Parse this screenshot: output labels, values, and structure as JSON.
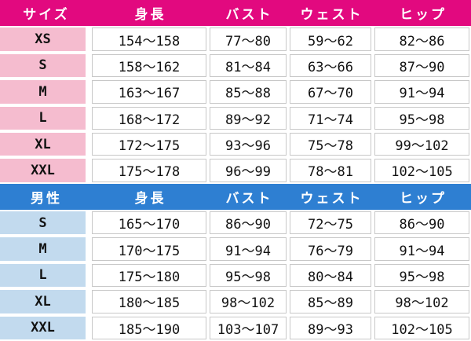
{
  "chart_data": [
    {
      "type": "table",
      "name": "women",
      "title": "サイズ",
      "column_keys": [
        "size",
        "height",
        "bust",
        "waist",
        "hip"
      ],
      "headers": [
        "サイズ",
        "身長",
        "バスト",
        "ウェスト",
        "ヒップ"
      ],
      "rows": [
        [
          "XS",
          "154〜158",
          "77〜80",
          "59〜62",
          "82〜86"
        ],
        [
          "S",
          "158〜162",
          "81〜84",
          "63〜66",
          "87〜90"
        ],
        [
          "M",
          "163〜167",
          "85〜88",
          "67〜70",
          "91〜94"
        ],
        [
          "L",
          "168〜172",
          "89〜92",
          "71〜74",
          "95〜98"
        ],
        [
          "XL",
          "172〜175",
          "93〜96",
          "75〜78",
          "99〜102"
        ],
        [
          "XXL",
          "175〜178",
          "96〜99",
          "78〜81",
          "102〜105"
        ]
      ]
    },
    {
      "type": "table",
      "name": "men",
      "title": "男性",
      "column_keys": [
        "size",
        "height",
        "bust",
        "waist",
        "hip"
      ],
      "headers": [
        "男性",
        "身長",
        "バスト",
        "ウェスト",
        "ヒップ"
      ],
      "rows": [
        [
          "S",
          "165〜170",
          "86〜90",
          "72〜75",
          "86〜90"
        ],
        [
          "M",
          "170〜175",
          "91〜94",
          "76〜79",
          "91〜94"
        ],
        [
          "L",
          "175〜180",
          "95〜98",
          "80〜84",
          "95〜98"
        ],
        [
          "XL",
          "180〜185",
          "98〜102",
          "85〜89",
          "98〜102"
        ],
        [
          "XXL",
          "185〜190",
          "103〜107",
          "89〜93",
          "102〜105"
        ]
      ]
    }
  ],
  "colors": {
    "women_header_bg": "#E2097F",
    "women_row_bg": "#F5BCCF",
    "men_header_bg": "#2E7FD2",
    "men_row_bg": "#C2DAEE",
    "cell_border": "#C8C8C8",
    "header_text": "#FFFFFF",
    "body_text": "#121212",
    "background": "#FFFFFF"
  }
}
